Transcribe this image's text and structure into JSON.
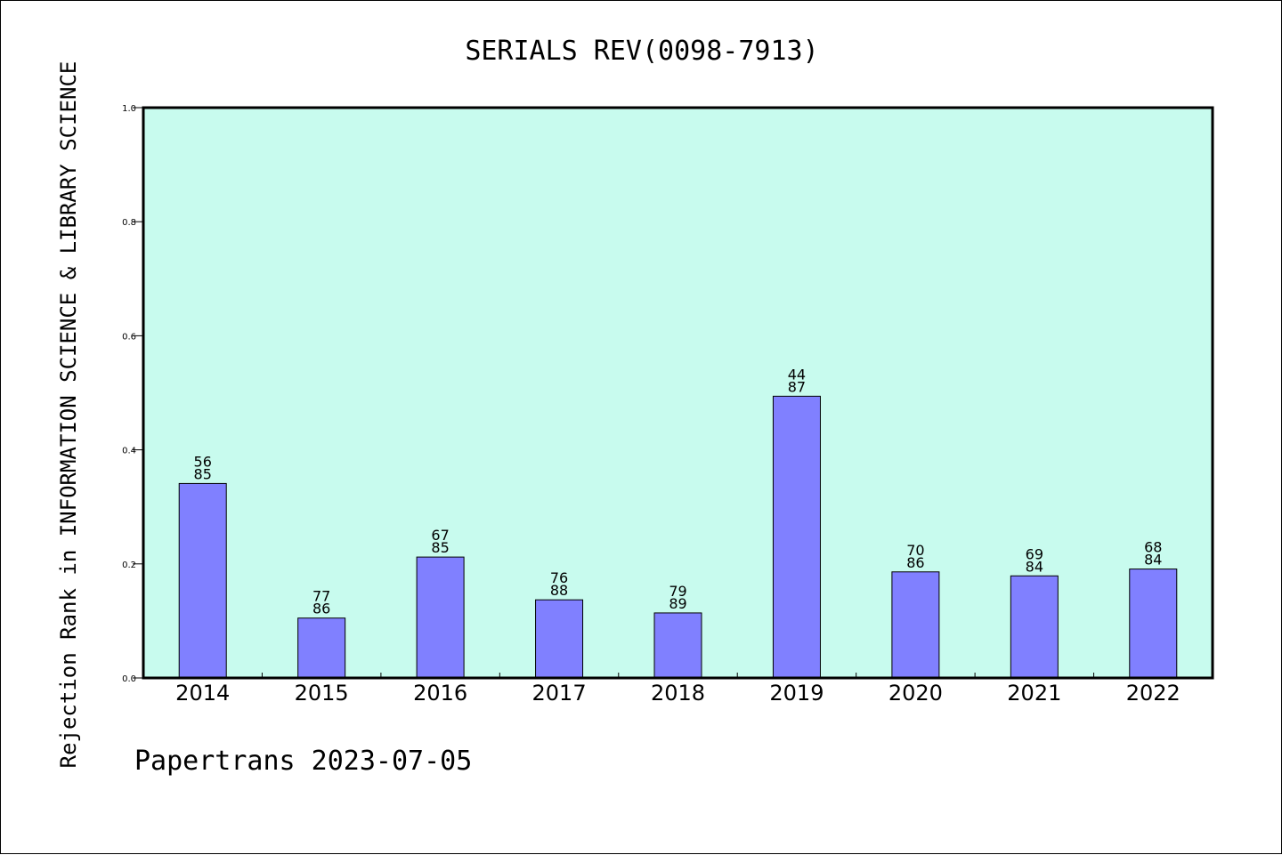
{
  "chart_data": {
    "type": "bar",
    "title": "SERIALS REV(0098-7913)",
    "ylabel": "Rejection Rank in INFORMATION SCIENCE & LIBRARY SCIENCE",
    "xlabel": "",
    "categories": [
      "2014",
      "2015",
      "2016",
      "2017",
      "2018",
      "2019",
      "2020",
      "2021",
      "2022"
    ],
    "values": [
      0.341,
      0.105,
      0.212,
      0.137,
      0.114,
      0.494,
      0.186,
      0.179,
      0.191
    ],
    "bar_labels_top": [
      "56",
      "77",
      "67",
      "76",
      "79",
      "44",
      "70",
      "69",
      "68"
    ],
    "bar_labels_bottom": [
      "85",
      "86",
      "85",
      "88",
      "89",
      "87",
      "86",
      "84",
      "84"
    ],
    "ylim": [
      0,
      1.0
    ],
    "yticks": [
      "0.0",
      "0.2",
      "0.4",
      "0.6",
      "0.8",
      "1.0"
    ],
    "grid": false,
    "colors": {
      "plot_background": "#c8fbee",
      "bar_fill": "#8080ff",
      "bar_stroke": "#000000"
    }
  },
  "footer": {
    "text": "Papertrans 2023-07-05"
  }
}
